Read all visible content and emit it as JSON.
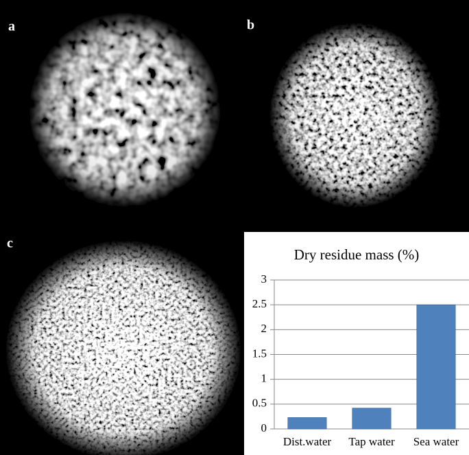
{
  "panels": [
    {
      "label": "a"
    },
    {
      "label": "b"
    },
    {
      "label": "c"
    }
  ],
  "chart_data": {
    "type": "bar",
    "title": "Dry residue mass (%)",
    "categories": [
      "Dist.water",
      "Tap water",
      "Sea water"
    ],
    "values": [
      0.23,
      0.42,
      2.5
    ],
    "color": "#4f81bd",
    "ylim": [
      0,
      3
    ],
    "yticks": [
      0,
      0.5,
      1,
      1.5,
      2,
      2.5,
      3
    ],
    "grid": true
  }
}
